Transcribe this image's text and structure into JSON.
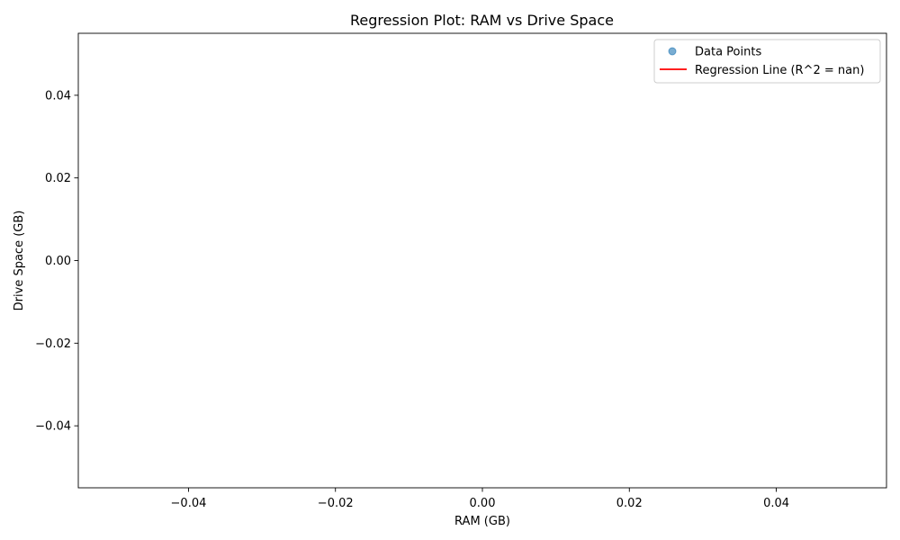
{
  "chart_data": {
    "type": "scatter",
    "title": "Regression Plot: RAM vs Drive Space",
    "xlabel": "RAM (GB)",
    "ylabel": "Drive Space (GB)",
    "xlim": [
      -0.055,
      0.055
    ],
    "ylim": [
      -0.055,
      0.055
    ],
    "x_ticks": [
      -0.04,
      -0.02,
      0.0,
      0.02,
      0.04
    ],
    "x_tick_labels": [
      "−0.04",
      "−0.02",
      "0.00",
      "0.02",
      "0.04"
    ],
    "y_ticks": [
      -0.04,
      -0.02,
      0.0,
      0.02,
      0.04
    ],
    "y_tick_labels": [
      "−0.04",
      "−0.02",
      "0.00",
      "0.02",
      "0.04"
    ],
    "grid": false,
    "legend_position": "top-right",
    "series": [
      {
        "name": "Data Points",
        "kind": "scatter",
        "color": "#1f77b4",
        "x": [],
        "y": []
      },
      {
        "name": "Regression Line (R^2 = nan)",
        "kind": "line",
        "color": "#ff0000",
        "x": [],
        "y": []
      }
    ]
  }
}
